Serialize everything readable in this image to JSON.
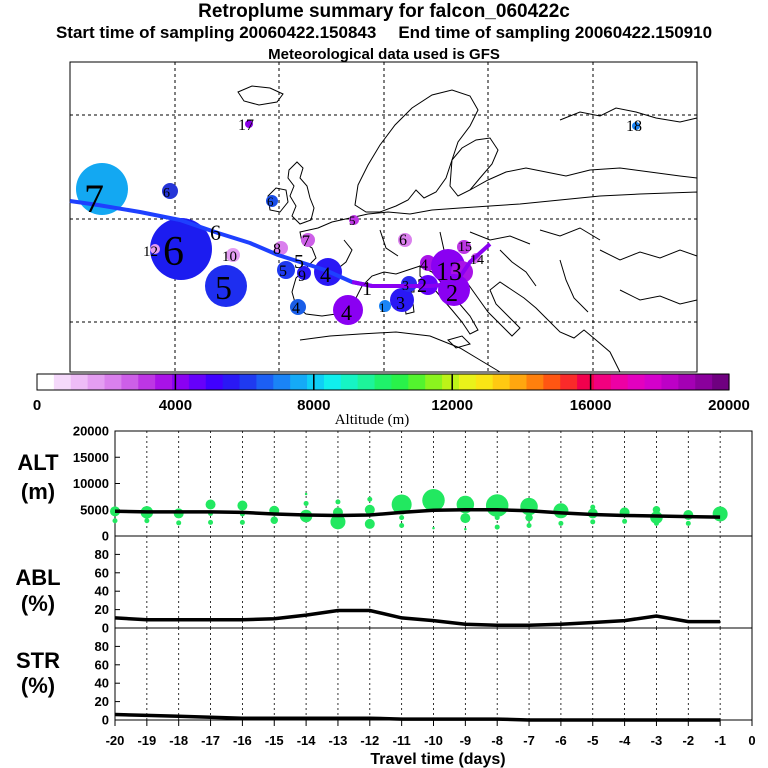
{
  "header": {
    "title": "Retroplume summary for falcon_060422c",
    "start_time": "Start time of sampling 20060422.150843",
    "end_time": "End time of sampling 20060422.150910",
    "met_data": "Meteorological data used is GFS"
  },
  "colorbar": {
    "tick_labels": [
      "0",
      "4000",
      "8000",
      "12000",
      "16000",
      "20000"
    ],
    "label": "Altitude  (m)",
    "colors": [
      "#ffffff",
      "#f5d9fb",
      "#eebcf7",
      "#e49ef2",
      "#da80ed",
      "#cd5fe8",
      "#bd36e4",
      "#a912e8",
      "#8a00f2",
      "#6600fb",
      "#4000ff",
      "#2a18f5",
      "#1f3af0",
      "#1c5ff4",
      "#1a84f6",
      "#15aaf6",
      "#0fcff6",
      "#10efee",
      "#16f4c4",
      "#1df49a",
      "#1ff26a",
      "#29f24a",
      "#53f42e",
      "#8bf41e",
      "#bdf318",
      "#eaf21a",
      "#fae515",
      "#ffc912",
      "#ffa70f",
      "#ff800d",
      "#ff5612",
      "#fa2a2a",
      "#f2004d",
      "#f2007f",
      "#ed00a4",
      "#e300bf",
      "#d400cb",
      "#bd00c6",
      "#a400b4",
      "#8a009c",
      "#6f0080"
    ]
  },
  "map": {
    "trajectory_color": "#1e40ff",
    "labels": [
      {
        "text": "17",
        "day": 17
      },
      {
        "text": "18",
        "day": 18
      },
      {
        "text": "7",
        "day": 7
      },
      {
        "text": "6",
        "day": 6
      },
      {
        "text": "12",
        "day": 12
      },
      {
        "text": "10",
        "day": 10
      },
      {
        "text": "5",
        "day": 5
      },
      {
        "text": "8",
        "day": 8
      },
      {
        "text": "9",
        "day": 9
      },
      {
        "text": "4",
        "day": 4
      },
      {
        "text": "3",
        "day": 3
      },
      {
        "text": "2",
        "day": 2
      },
      {
        "text": "1",
        "day": 1
      },
      {
        "text": "13",
        "day": 13
      },
      {
        "text": "14",
        "day": 14
      },
      {
        "text": "15",
        "day": 15
      }
    ]
  },
  "chart_data": [
    {
      "type": "scatter",
      "panel": "ALT",
      "ylabel": "ALT\n(m)",
      "ylabel_lines": [
        "ALT",
        "(m)"
      ],
      "ylim": [
        0,
        20000
      ],
      "yticks": [
        "0",
        "5000",
        "10000",
        "15000",
        "20000"
      ],
      "xlim": [
        -20,
        0
      ],
      "series": [
        {
          "name": "mean altitude",
          "color": "#000000",
          "x": [
            -20,
            -19,
            -18,
            -17,
            -16,
            -15,
            -14,
            -13,
            -12,
            -11,
            -10,
            -9,
            -8,
            -7,
            -6,
            -5,
            -4,
            -3,
            -2,
            -1
          ],
          "values": [
            4700,
            4600,
            4600,
            4600,
            4500,
            4200,
            4000,
            3900,
            4000,
            4500,
            4900,
            5000,
            5000,
            4800,
            4400,
            4100,
            3900,
            3800,
            3700,
            3600
          ]
        },
        {
          "name": "plume clusters",
          "color": "#22e860",
          "points": [
            {
              "x": -20,
              "y": 4700,
              "size": 4
            },
            {
              "x": -20,
              "y": 2900,
              "size": 2
            },
            {
              "x": -19,
              "y": 4500,
              "size": 5
            },
            {
              "x": -19,
              "y": 2900,
              "size": 2
            },
            {
              "x": -18,
              "y": 4300,
              "size": 4
            },
            {
              "x": -18,
              "y": 2500,
              "size": 2
            },
            {
              "x": -17,
              "y": 6000,
              "size": 4
            },
            {
              "x": -17,
              "y": 4300,
              "size": 2
            },
            {
              "x": -17,
              "y": 2600,
              "size": 2
            },
            {
              "x": -16,
              "y": 5800,
              "size": 4
            },
            {
              "x": -16,
              "y": 4200,
              "size": 2
            },
            {
              "x": -16,
              "y": 2600,
              "size": 2
            },
            {
              "x": -15,
              "y": 4800,
              "size": 4
            },
            {
              "x": -15,
              "y": 3000,
              "size": 3
            },
            {
              "x": -14,
              "y": 8000,
              "size": 1
            },
            {
              "x": -14,
              "y": 6200,
              "size": 2
            },
            {
              "x": -14,
              "y": 3800,
              "size": 5
            },
            {
              "x": -13,
              "y": 6500,
              "size": 2
            },
            {
              "x": -13,
              "y": 4500,
              "size": 4
            },
            {
              "x": -13,
              "y": 2700,
              "size": 6
            },
            {
              "x": -12,
              "y": 7000,
              "size": 2
            },
            {
              "x": -12,
              "y": 5000,
              "size": 4
            },
            {
              "x": -12,
              "y": 2300,
              "size": 4
            },
            {
              "x": -11,
              "y": 6000,
              "size": 8
            },
            {
              "x": -11,
              "y": 3500,
              "size": 2
            },
            {
              "x": -11,
              "y": 2000,
              "size": 2
            },
            {
              "x": -10,
              "y": 6800,
              "size": 9
            },
            {
              "x": -10,
              "y": 1500,
              "size": 1
            },
            {
              "x": -9,
              "y": 6000,
              "size": 7
            },
            {
              "x": -9,
              "y": 3400,
              "size": 4
            },
            {
              "x": -9,
              "y": 1300,
              "size": 1
            },
            {
              "x": -8,
              "y": 5800,
              "size": 9
            },
            {
              "x": -8,
              "y": 3500,
              "size": 2
            },
            {
              "x": -8,
              "y": 1700,
              "size": 2
            },
            {
              "x": -7,
              "y": 5600,
              "size": 7
            },
            {
              "x": -7,
              "y": 3500,
              "size": 3
            },
            {
              "x": -7,
              "y": 2000,
              "size": 2
            },
            {
              "x": -6,
              "y": 4800,
              "size": 6
            },
            {
              "x": -6,
              "y": 2400,
              "size": 2
            },
            {
              "x": -5,
              "y": 5500,
              "size": 2
            },
            {
              "x": -5,
              "y": 4300,
              "size": 4
            },
            {
              "x": -5,
              "y": 2700,
              "size": 2
            },
            {
              "x": -4,
              "y": 4500,
              "size": 4
            },
            {
              "x": -4,
              "y": 2800,
              "size": 2
            },
            {
              "x": -3,
              "y": 5000,
              "size": 3
            },
            {
              "x": -3,
              "y": 3500,
              "size": 5
            },
            {
              "x": -3,
              "y": 2400,
              "size": 2
            },
            {
              "x": -2,
              "y": 4000,
              "size": 4
            },
            {
              "x": -2,
              "y": 2400,
              "size": 2
            },
            {
              "x": -1,
              "y": 4200,
              "size": 6
            }
          ]
        }
      ]
    },
    {
      "type": "line",
      "panel": "ABL",
      "ylabel": "ABL\n(%)",
      "ylabel_lines": [
        "ABL",
        "(%)"
      ],
      "ylim": [
        0,
        100
      ],
      "yticks": [
        "0",
        "20",
        "40",
        "60",
        "80"
      ],
      "xlim": [
        -20,
        0
      ],
      "x": [
        -20,
        -19,
        -18,
        -17,
        -16,
        -15,
        -14,
        -13,
        -12,
        -11,
        -10,
        -9,
        -8,
        -7,
        -6,
        -5,
        -4,
        -3,
        -2,
        -1
      ],
      "values": [
        11,
        9,
        9,
        9,
        9,
        10,
        14,
        19,
        19,
        11,
        8,
        4,
        3,
        3,
        4,
        6,
        8,
        13,
        7,
        7
      ]
    },
    {
      "type": "line",
      "panel": "STR",
      "ylabel": "STR\n(%)",
      "ylabel_lines": [
        "STR",
        "(%)"
      ],
      "ylim": [
        0,
        100
      ],
      "yticks": [
        "0",
        "20",
        "40",
        "60",
        "80"
      ],
      "xlim": [
        -20,
        0
      ],
      "x": [
        -20,
        -19,
        -18,
        -17,
        -16,
        -15,
        -14,
        -13,
        -12,
        -11,
        -10,
        -9,
        -8,
        -7,
        -6,
        -5,
        -4,
        -3,
        -2,
        -1
      ],
      "values": [
        6,
        5,
        4,
        3,
        2,
        2,
        2,
        2,
        2,
        1,
        1,
        1,
        1,
        0,
        0,
        0,
        0,
        0,
        0,
        0
      ]
    }
  ],
  "x_axis": {
    "tick_labels": [
      "-20",
      "-19",
      "-18",
      "-17",
      "-16",
      "-15",
      "-14",
      "-13",
      "-12",
      "-11",
      "-10",
      "-9",
      "-8",
      "-7",
      "-6",
      "-5",
      "-4",
      "-3",
      "-2",
      "-1",
      "0"
    ],
    "label": "Travel time (days)"
  }
}
